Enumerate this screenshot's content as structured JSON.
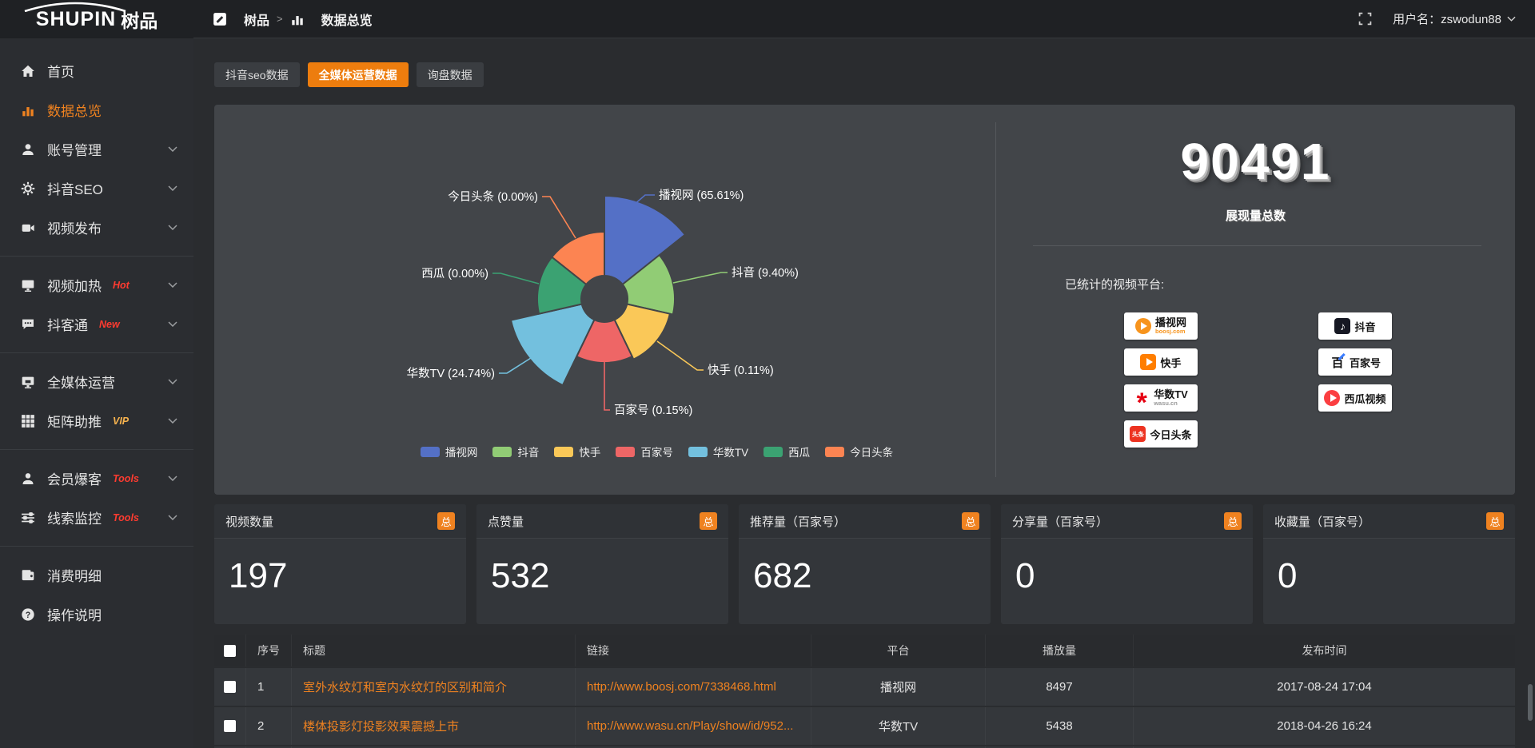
{
  "sidebar": {
    "logo_en": "SHUPIN",
    "logo_cn": "树品",
    "groups": [
      {
        "items": [
          {
            "label": "首页",
            "icon": "home-icon"
          },
          {
            "label": "数据总览",
            "icon": "bar-chart-icon",
            "active": true
          },
          {
            "label": "账号管理",
            "icon": "user-icon",
            "expandable": true
          },
          {
            "label": "抖音SEO",
            "icon": "gear-icon",
            "expandable": true
          },
          {
            "label": "视频发布",
            "icon": "video-icon",
            "expandable": true
          }
        ]
      },
      {
        "items": [
          {
            "label": "视频加热",
            "icon": "screen-icon",
            "badge": "Hot",
            "badge_color": "#ff3b30",
            "expandable": true
          },
          {
            "label": "抖客通",
            "icon": "chat-icon",
            "badge": "New",
            "badge_color": "#ff3b30",
            "expandable": true
          }
        ]
      },
      {
        "items": [
          {
            "label": "全媒体运营",
            "icon": "monitor-icon",
            "expandable": true
          },
          {
            "label": "矩阵助推",
            "icon": "grid-icon",
            "badge": "VIP",
            "badge_color": "#f6b24e",
            "expandable": true
          }
        ]
      },
      {
        "items": [
          {
            "label": "会员爆客",
            "icon": "member-icon",
            "badge": "Tools",
            "badge_color": "#ff3b30",
            "expandable": true
          },
          {
            "label": "线索监控",
            "icon": "sliders-icon",
            "badge": "Tools",
            "badge_color": "#ff3b30",
            "expandable": true
          }
        ]
      },
      {
        "items": [
          {
            "label": "消费明细",
            "icon": "wallet-icon"
          },
          {
            "label": "操作说明",
            "icon": "question-icon"
          }
        ]
      }
    ]
  },
  "header": {
    "breadcrumb_root": "树品",
    "breadcrumb_sep": ">",
    "breadcrumb_page": "数据总览",
    "user_label": "用户名：zswodun88"
  },
  "tabs": [
    {
      "label": "抖音seo数据"
    },
    {
      "label": "全媒体运营数据",
      "active": true
    },
    {
      "label": "询盘数据"
    }
  ],
  "chart_data": {
    "type": "pie",
    "variant": "nightingale-rose",
    "unit": "%",
    "label_format": "{name} ({value}%)",
    "legend_position": "bottom",
    "series": [
      {
        "name": "播视网",
        "value": 65.61,
        "color": "#5470c6"
      },
      {
        "name": "抖音",
        "value": 9.4,
        "color": "#91cc75"
      },
      {
        "name": "快手",
        "value": 0.11,
        "color": "#fac858"
      },
      {
        "name": "百家号",
        "value": 0.15,
        "color": "#ee6666"
      },
      {
        "name": "华数TV",
        "value": 24.74,
        "color": "#73c0de"
      },
      {
        "name": "西瓜",
        "value": 0.0,
        "color": "#3ba272"
      },
      {
        "name": "今日头条",
        "value": 0.0,
        "color": "#fc8452"
      }
    ],
    "legend": [
      "播视网",
      "抖音",
      "快手",
      "百家号",
      "华数TV",
      "西瓜",
      "今日头条"
    ]
  },
  "stats": {
    "total_value": "90491",
    "total_label": "展现量总数",
    "platforms_title": "已统计的视频平台:",
    "platforms": [
      {
        "name": "播视网",
        "sub": "boosj.com",
        "icon": "boosj-logo"
      },
      {
        "name": "快手",
        "icon": "kuaishou-logo"
      },
      {
        "name": "华数TV",
        "sub": "wasu.cn",
        "icon": "wasu-logo"
      },
      {
        "name": "今日头条",
        "icon": "toutiao-logo",
        "icon_text": "头条"
      },
      {
        "name": "抖音",
        "icon": "douyin-logo"
      },
      {
        "name": "百家号",
        "icon": "baijiahao-logo",
        "icon_text": "百"
      },
      {
        "name": "西瓜视频",
        "icon": "xigua-logo"
      }
    ]
  },
  "cards": [
    {
      "title": "视频数量",
      "badge": "总",
      "value": "197"
    },
    {
      "title": "点赞量",
      "badge": "总",
      "value": "532"
    },
    {
      "title": "推荐量（百家号）",
      "badge": "总",
      "value": "682"
    },
    {
      "title": "分享量（百家号）",
      "badge": "总",
      "value": "0"
    },
    {
      "title": "收藏量（百家号）",
      "badge": "总",
      "value": "0"
    }
  ],
  "table": {
    "columns": [
      {
        "label": "序号",
        "align": "left"
      },
      {
        "label": "标题",
        "align": "left"
      },
      {
        "label": "链接",
        "align": "left"
      },
      {
        "label": "平台",
        "align": "center"
      },
      {
        "label": "播放量",
        "align": "center"
      },
      {
        "label": "发布时间",
        "align": "center"
      }
    ],
    "rows": [
      {
        "no": "1",
        "title": "室外水纹灯和室内水纹灯的区别和简介",
        "link": "http://www.boosj.com/7338468.html",
        "platform": "播视网",
        "plays": "8497",
        "time": "2017-08-24 17:04"
      },
      {
        "no": "2",
        "title": "楼体投影灯投影效果震撼上市",
        "link": "http://www.wasu.cn/Play/show/id/952...",
        "platform": "华数TV",
        "plays": "5438",
        "time": "2018-04-26 16:24"
      }
    ]
  },
  "colors": {
    "accent_orange": "#ef8220",
    "active_tab": "#ed7d0e",
    "panel_bg": "#424549",
    "page_bg": "#2a2c2f",
    "sidebar_bg": "#2b2d31"
  }
}
